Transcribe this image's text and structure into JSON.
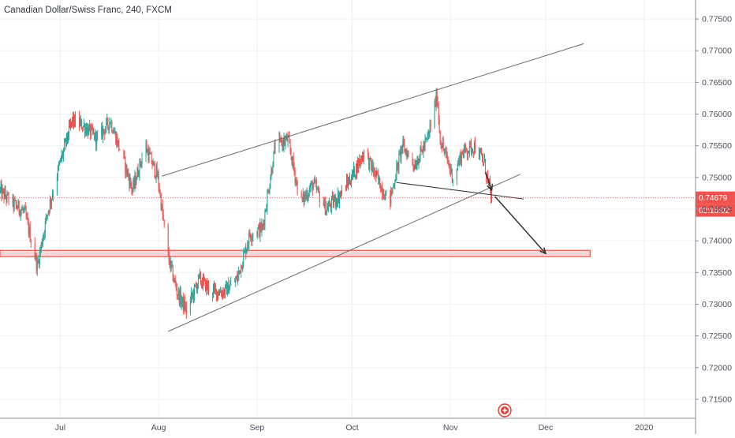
{
  "header": {
    "title": "Canadian Dollar/Swiss Franc, 240, FXCM"
  },
  "chart_data": {
    "type": "candlestick",
    "title": "Canadian Dollar/Swiss Franc, 240, FXCM",
    "ylim": [
      0.712,
      0.778
    ],
    "y_ticks": [
      "0.77500",
      "0.77000",
      "0.76500",
      "0.76000",
      "0.75500",
      "0.75000",
      "0.74500",
      "0.74000",
      "0.73500",
      "0.73000",
      "0.72500",
      "0.72000",
      "0.71500"
    ],
    "y_tick_values": [
      0.775,
      0.77,
      0.765,
      0.76,
      0.755,
      0.75,
      0.745,
      0.74,
      0.735,
      0.73,
      0.725,
      0.72,
      0.715
    ],
    "x_ticks": [
      "Jul",
      "Aug",
      "Sep",
      "Oct",
      "Nov",
      "Dec",
      "2020"
    ],
    "x_tick_dates": [
      "2019-07-01",
      "2019-08-01",
      "2019-09-01",
      "2019-10-01",
      "2019-11-01",
      "2019-12-01",
      "2020-01-01"
    ],
    "x_range": [
      "2019-06-12",
      "2020-01-17"
    ],
    "last_price": "0.74679",
    "last_price_value": 0.74679,
    "countdown": "02:15:02",
    "grid": true,
    "colors": {
      "up": "#26a69a",
      "down": "#ef5350",
      "price_line": "#ef5350",
      "zone_fill": "#f8c8c8",
      "zone_border": "#e53935",
      "trendline": "#555555",
      "arrow": "#333333",
      "grid": "#eef0f3"
    },
    "price_path": [
      [
        "2019-06-12",
        0.748
      ],
      [
        "2019-06-16",
        0.746
      ],
      [
        "2019-06-20",
        0.7445
      ],
      [
        "2019-06-24",
        0.736
      ],
      [
        "2019-06-27",
        0.744
      ],
      [
        "2019-07-01",
        0.752
      ],
      [
        "2019-07-05",
        0.759
      ],
      [
        "2019-07-09",
        0.758
      ],
      [
        "2019-07-13",
        0.756
      ],
      [
        "2019-07-17",
        0.759
      ],
      [
        "2019-07-21",
        0.753
      ],
      [
        "2019-07-24",
        0.748
      ],
      [
        "2019-07-28",
        0.755
      ],
      [
        "2019-08-01",
        0.75
      ],
      [
        "2019-08-04",
        0.738
      ],
      [
        "2019-08-07",
        0.732
      ],
      [
        "2019-08-10",
        0.729
      ],
      [
        "2019-08-14",
        0.734
      ],
      [
        "2019-08-18",
        0.732
      ],
      [
        "2019-08-22",
        0.732
      ],
      [
        "2019-08-26",
        0.734
      ],
      [
        "2019-08-30",
        0.741
      ],
      [
        "2019-09-03",
        0.742
      ],
      [
        "2019-09-07",
        0.755
      ],
      [
        "2019-09-11",
        0.756
      ],
      [
        "2019-09-15",
        0.746
      ],
      [
        "2019-09-19",
        0.749
      ],
      [
        "2019-09-23",
        0.745
      ],
      [
        "2019-09-27",
        0.747
      ],
      [
        "2019-10-01",
        0.75
      ],
      [
        "2019-10-05",
        0.754
      ],
      [
        "2019-10-09",
        0.75
      ],
      [
        "2019-10-13",
        0.746
      ],
      [
        "2019-10-17",
        0.755
      ],
      [
        "2019-10-21",
        0.752
      ],
      [
        "2019-10-25",
        0.756
      ],
      [
        "2019-10-28",
        0.763
      ],
      [
        "2019-10-29",
        0.756
      ],
      [
        "2019-10-31",
        0.753
      ],
      [
        "2019-11-02",
        0.75
      ],
      [
        "2019-11-05",
        0.754
      ],
      [
        "2019-11-09",
        0.755
      ],
      [
        "2019-11-12",
        0.752
      ],
      [
        "2019-11-14",
        0.747
      ]
    ],
    "annotations": {
      "channel_upper": [
        [
          "2019-08-02",
          0.7502
        ],
        [
          "2019-12-13",
          0.7711
        ]
      ],
      "channel_lower": [
        [
          "2019-08-04",
          0.7257
        ],
        [
          "2019-11-23",
          0.7505
        ]
      ],
      "mid_trendline": [
        [
          "2019-10-15",
          0.7492
        ],
        [
          "2019-11-24",
          0.7466
        ]
      ],
      "short_arrow": [
        [
          "2019-11-12",
          0.7508
        ],
        [
          "2019-11-14",
          0.748
        ]
      ],
      "projection_arrow": [
        [
          "2019-11-15",
          0.747
        ],
        [
          "2019-12-01",
          0.738
        ]
      ],
      "support_zone": {
        "start": "2019-06-12",
        "end": "2019-12-15",
        "top": 0.7385,
        "bottom": 0.7375
      }
    }
  }
}
